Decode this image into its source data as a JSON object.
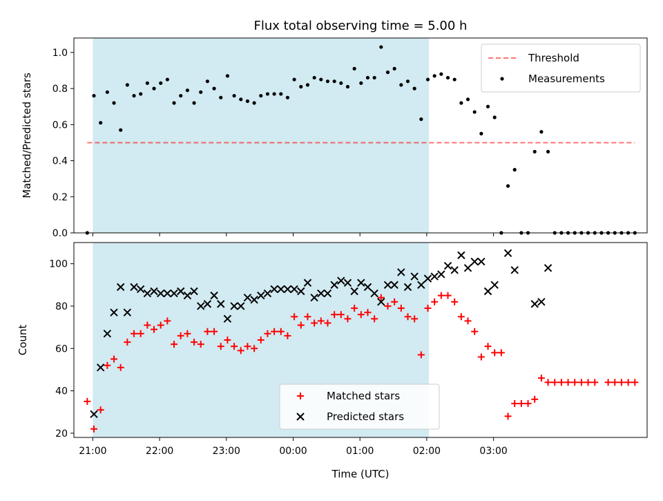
{
  "chart_data": [
    {
      "type": "scatter",
      "title": "Flux total observing time = 5.00 h",
      "xlabel": "",
      "ylabel": "Matched/Predicted stars",
      "ylim": [
        0,
        1.08
      ],
      "yticks": [
        "0.0",
        "0.2",
        "0.4",
        "0.6",
        "0.8",
        "1.0"
      ],
      "grid": false,
      "legend_position": "top-right",
      "shaded_window": {
        "start": "21:00",
        "end": "02:02",
        "color": "#add8e6"
      },
      "threshold": {
        "name": "Threshold",
        "value": 0.5,
        "color": "#ff0000"
      },
      "series": [
        {
          "name": "Measurements",
          "marker": "dot",
          "color": "#000000",
          "points": [
            [
              "20:55",
              0.0
            ],
            [
              "21:01",
              0.76
            ],
            [
              "21:07",
              0.61
            ],
            [
              "21:13",
              0.78
            ],
            [
              "21:19",
              0.72
            ],
            [
              "21:25",
              0.57
            ],
            [
              "21:31",
              0.82
            ],
            [
              "21:37",
              0.76
            ],
            [
              "21:43",
              0.77
            ],
            [
              "21:49",
              0.83
            ],
            [
              "21:55",
              0.8
            ],
            [
              "22:01",
              0.83
            ],
            [
              "22:07",
              0.85
            ],
            [
              "22:13",
              0.72
            ],
            [
              "22:19",
              0.76
            ],
            [
              "22:25",
              0.79
            ],
            [
              "22:31",
              0.72
            ],
            [
              "22:37",
              0.78
            ],
            [
              "22:43",
              0.84
            ],
            [
              "22:49",
              0.8
            ],
            [
              "22:55",
              0.75
            ],
            [
              "23:01",
              0.87
            ],
            [
              "23:07",
              0.76
            ],
            [
              "23:13",
              0.74
            ],
            [
              "23:19",
              0.73
            ],
            [
              "23:25",
              0.72
            ],
            [
              "23:31",
              0.76
            ],
            [
              "23:37",
              0.77
            ],
            [
              "23:43",
              0.77
            ],
            [
              "23:49",
              0.77
            ],
            [
              "23:55",
              0.75
            ],
            [
              "00:01",
              0.85
            ],
            [
              "00:07",
              0.81
            ],
            [
              "00:13",
              0.82
            ],
            [
              "00:19",
              0.86
            ],
            [
              "00:25",
              0.85
            ],
            [
              "00:31",
              0.84
            ],
            [
              "00:37",
              0.84
            ],
            [
              "00:43",
              0.83
            ],
            [
              "00:49",
              0.81
            ],
            [
              "00:55",
              0.91
            ],
            [
              "01:01",
              0.83
            ],
            [
              "01:07",
              0.86
            ],
            [
              "01:13",
              0.86
            ],
            [
              "01:19",
              1.03
            ],
            [
              "01:25",
              0.89
            ],
            [
              "01:31",
              0.91
            ],
            [
              "01:37",
              0.82
            ],
            [
              "01:43",
              0.84
            ],
            [
              "01:49",
              0.8
            ],
            [
              "01:55",
              0.63
            ],
            [
              "02:01",
              0.85
            ],
            [
              "02:07",
              0.87
            ],
            [
              "02:13",
              0.88
            ],
            [
              "02:19",
              0.86
            ],
            [
              "02:25",
              0.85
            ],
            [
              "02:31",
              0.72
            ],
            [
              "02:37",
              0.74
            ],
            [
              "02:43",
              0.67
            ],
            [
              "02:49",
              0.55
            ],
            [
              "02:55",
              0.7
            ],
            [
              "03:01",
              0.64
            ],
            [
              "03:07",
              0.0
            ],
            [
              "03:13",
              0.26
            ],
            [
              "03:19",
              0.35
            ],
            [
              "03:25",
              0.0
            ],
            [
              "03:31",
              0.0
            ],
            [
              "03:37",
              0.45
            ],
            [
              "03:43",
              0.56
            ],
            [
              "03:49",
              0.45
            ],
            [
              "03:55",
              0.0
            ],
            [
              "04:01",
              0.0
            ],
            [
              "04:07",
              0.0
            ],
            [
              "04:13",
              0.0
            ],
            [
              "04:19",
              0.0
            ],
            [
              "04:25",
              0.0
            ],
            [
              "04:31",
              0.0
            ],
            [
              "04:37",
              0.0
            ],
            [
              "04:43",
              0.0
            ],
            [
              "04:49",
              0.0
            ],
            [
              "04:55",
              0.0
            ],
            [
              "05:01",
              0.0
            ],
            [
              "05:07",
              0.0
            ]
          ]
        }
      ]
    },
    {
      "type": "scatter",
      "title": "",
      "xlabel": "Time (UTC)",
      "ylabel": "Count",
      "ylim": [
        18,
        110
      ],
      "yticks": [
        "20",
        "40",
        "60",
        "80",
        "100"
      ],
      "xticks": [
        "21:00",
        "22:00",
        "23:00",
        "00:00",
        "01:00",
        "02:00",
        "03:00"
      ],
      "grid": false,
      "legend_position": "lower-center",
      "shaded_window": {
        "start": "21:00",
        "end": "02:02",
        "color": "#add8e6"
      },
      "series": [
        {
          "name": "Matched stars",
          "marker": "plus",
          "color": "#ff0000",
          "points": [
            [
              "20:55",
              35
            ],
            [
              "21:01",
              22
            ],
            [
              "21:07",
              31
            ],
            [
              "21:13",
              52
            ],
            [
              "21:19",
              55
            ],
            [
              "21:25",
              51
            ],
            [
              "21:31",
              63
            ],
            [
              "21:37",
              67
            ],
            [
              "21:43",
              67
            ],
            [
              "21:49",
              71
            ],
            [
              "21:55",
              69
            ],
            [
              "22:01",
              71
            ],
            [
              "22:07",
              73
            ],
            [
              "22:13",
              62
            ],
            [
              "22:19",
              66
            ],
            [
              "22:25",
              67
            ],
            [
              "22:31",
              63
            ],
            [
              "22:37",
              62
            ],
            [
              "22:43",
              68
            ],
            [
              "22:49",
              68
            ],
            [
              "22:55",
              61
            ],
            [
              "23:01",
              64
            ],
            [
              "23:07",
              61
            ],
            [
              "23:13",
              59
            ],
            [
              "23:19",
              61
            ],
            [
              "23:25",
              60
            ],
            [
              "23:31",
              64
            ],
            [
              "23:37",
              67
            ],
            [
              "23:43",
              68
            ],
            [
              "23:49",
              68
            ],
            [
              "23:55",
              66
            ],
            [
              "00:01",
              75
            ],
            [
              "00:07",
              71
            ],
            [
              "00:13",
              75
            ],
            [
              "00:19",
              72
            ],
            [
              "00:25",
              73
            ],
            [
              "00:31",
              72
            ],
            [
              "00:37",
              76
            ],
            [
              "00:43",
              76
            ],
            [
              "00:49",
              74
            ],
            [
              "00:55",
              79
            ],
            [
              "01:01",
              76
            ],
            [
              "01:07",
              77
            ],
            [
              "01:13",
              74
            ],
            [
              "01:19",
              84
            ],
            [
              "01:25",
              80
            ],
            [
              "01:31",
              82
            ],
            [
              "01:37",
              79
            ],
            [
              "01:43",
              75
            ],
            [
              "01:49",
              74
            ],
            [
              "01:55",
              57
            ],
            [
              "02:01",
              79
            ],
            [
              "02:07",
              82
            ],
            [
              "02:13",
              85
            ],
            [
              "02:19",
              85
            ],
            [
              "02:25",
              82
            ],
            [
              "02:31",
              75
            ],
            [
              "02:37",
              73
            ],
            [
              "02:43",
              68
            ],
            [
              "02:49",
              56
            ],
            [
              "02:55",
              61
            ],
            [
              "03:01",
              58
            ],
            [
              "03:07",
              58
            ],
            [
              "03:13",
              28
            ],
            [
              "03:19",
              34
            ],
            [
              "03:25",
              34
            ],
            [
              "03:31",
              34
            ],
            [
              "03:37",
              36
            ],
            [
              "03:43",
              46
            ],
            [
              "03:49",
              44
            ],
            [
              "03:55",
              44
            ],
            [
              "04:01",
              44
            ],
            [
              "04:07",
              44
            ],
            [
              "04:13",
              44
            ],
            [
              "04:19",
              44
            ],
            [
              "04:25",
              44
            ],
            [
              "04:31",
              44
            ],
            [
              "04:43",
              44
            ],
            [
              "04:49",
              44
            ],
            [
              "04:55",
              44
            ],
            [
              "05:01",
              44
            ],
            [
              "05:07",
              44
            ]
          ]
        },
        {
          "name": "Predicted stars",
          "marker": "x",
          "color": "#000000",
          "points": [
            [
              "21:01",
              29
            ],
            [
              "21:07",
              51
            ],
            [
              "21:13",
              67
            ],
            [
              "21:19",
              77
            ],
            [
              "21:25",
              89
            ],
            [
              "21:31",
              77
            ],
            [
              "21:37",
              89
            ],
            [
              "21:43",
              88
            ],
            [
              "21:49",
              86
            ],
            [
              "21:55",
              87
            ],
            [
              "22:01",
              86
            ],
            [
              "22:07",
              86
            ],
            [
              "22:13",
              86
            ],
            [
              "22:19",
              87
            ],
            [
              "22:25",
              85
            ],
            [
              "22:31",
              87
            ],
            [
              "22:37",
              80
            ],
            [
              "22:43",
              81
            ],
            [
              "22:49",
              85
            ],
            [
              "22:55",
              81
            ],
            [
              "23:01",
              74
            ],
            [
              "23:07",
              80
            ],
            [
              "23:13",
              80
            ],
            [
              "23:19",
              84
            ],
            [
              "23:25",
              83
            ],
            [
              "23:31",
              85
            ],
            [
              "23:37",
              86
            ],
            [
              "23:43",
              88
            ],
            [
              "23:49",
              88
            ],
            [
              "23:55",
              88
            ],
            [
              "00:01",
              88
            ],
            [
              "00:07",
              87
            ],
            [
              "00:13",
              91
            ],
            [
              "00:19",
              84
            ],
            [
              "00:25",
              86
            ],
            [
              "00:31",
              86
            ],
            [
              "00:37",
              90
            ],
            [
              "00:43",
              92
            ],
            [
              "00:49",
              91
            ],
            [
              "00:55",
              87
            ],
            [
              "01:01",
              91
            ],
            [
              "01:07",
              89
            ],
            [
              "01:13",
              86
            ],
            [
              "01:19",
              82
            ],
            [
              "01:25",
              90
            ],
            [
              "01:31",
              90
            ],
            [
              "01:37",
              96
            ],
            [
              "01:43",
              89
            ],
            [
              "01:49",
              94
            ],
            [
              "01:55",
              90
            ],
            [
              "02:01",
              93
            ],
            [
              "02:07",
              94
            ],
            [
              "02:13",
              95
            ],
            [
              "02:19",
              99
            ],
            [
              "02:25",
              97
            ],
            [
              "02:31",
              104
            ],
            [
              "02:37",
              98
            ],
            [
              "02:43",
              101
            ],
            [
              "02:49",
              101
            ],
            [
              "02:55",
              87
            ],
            [
              "03:01",
              90
            ],
            [
              "03:13",
              105
            ],
            [
              "03:19",
              97
            ],
            [
              "03:37",
              81
            ],
            [
              "03:43",
              82
            ],
            [
              "03:49",
              98
            ]
          ]
        }
      ]
    }
  ]
}
